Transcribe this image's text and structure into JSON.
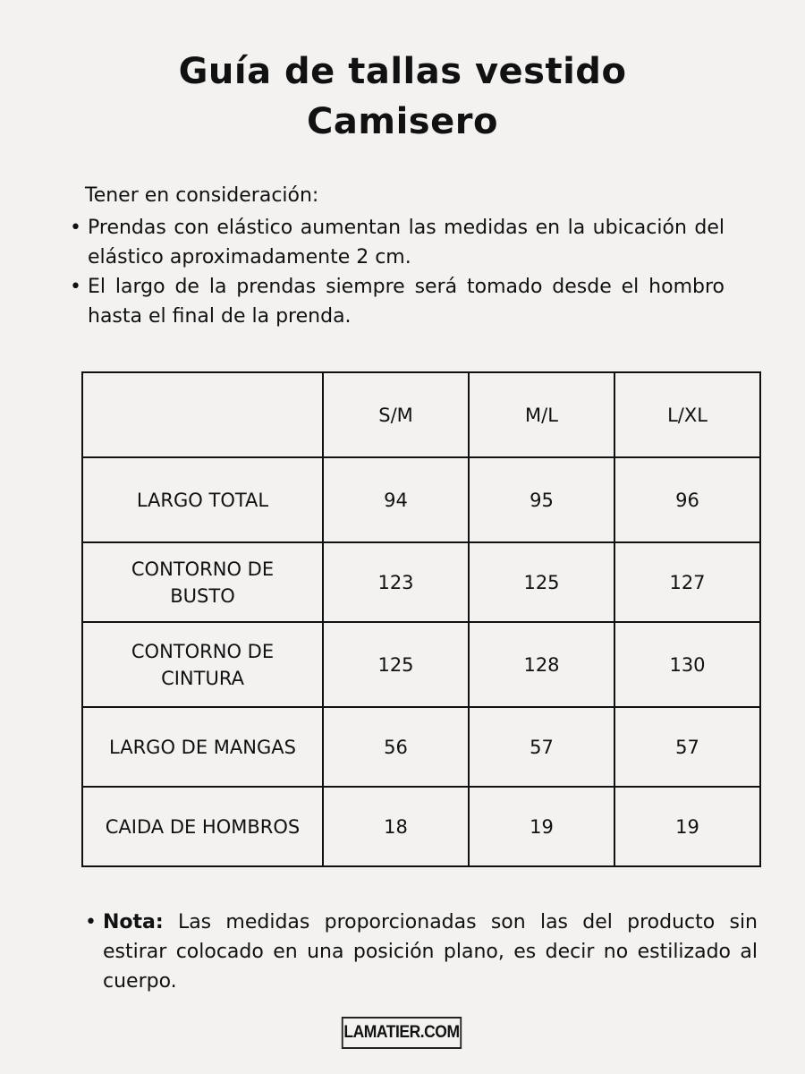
{
  "title_line1": "Guía de tallas vestido",
  "title_line2": "Camisero",
  "intro": "Tener en consideración:",
  "notes": [
    "Prendas con elástico aumentan las medidas en la ubicación del elástico aproximadamente 2 cm.",
    "El largo de la prendas siempre será tomado desde el hombro hasta el final de la prenda."
  ],
  "table": {
    "headers": [
      "",
      "S/M",
      "M/L",
      "L/XL"
    ],
    "rows": [
      {
        "label": "LARGO TOTAL",
        "values": [
          "94",
          "95",
          "96"
        ]
      },
      {
        "label": "CONTORNO DE BUSTO",
        "values": [
          "123",
          "125",
          "127"
        ]
      },
      {
        "label": "CONTORNO DE CINTURA",
        "values": [
          "125",
          "128",
          "130"
        ]
      },
      {
        "label": "LARGO DE MANGAS",
        "values": [
          "56",
          "57",
          "57"
        ]
      },
      {
        "label": "CAIDA DE HOMBROS",
        "values": [
          "18",
          "19",
          "19"
        ]
      }
    ]
  },
  "nota": {
    "label": "Nota:",
    "text": " Las medidas proporcionadas son las del producto sin estirar colocado en una posición plano, es decir no estilizado al cuerpo."
  },
  "logo": "LAMATIER.COM"
}
